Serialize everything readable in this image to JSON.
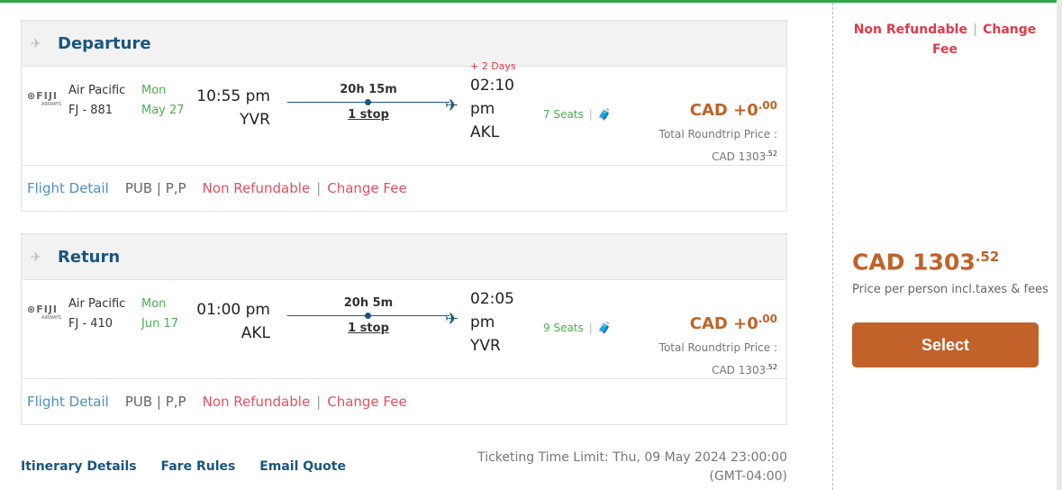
{
  "colors": {
    "accent": "#c0622a",
    "brand_blue": "#1a5580",
    "green": "#4caf50",
    "red": "#e03a4a",
    "top_bar": "#2ea84a"
  },
  "segments": [
    {
      "title": "Departure",
      "logo": "FIJI",
      "logo_sub": "AIRWAYS",
      "airline": "Air Pacific",
      "flight": "FJ - 881",
      "day": "Mon",
      "date": "May 27",
      "dep_time": "10:55 pm",
      "dep_code": "YVR",
      "duration": "20h 15m",
      "stops": "1 stop",
      "plus_days": "+ 2 Days",
      "arr_time_1": "02:10",
      "arr_time_2": "pm",
      "arr_code": "AKL",
      "seats": "7 Seats",
      "price": "CAD +0",
      "price_dec": ".00",
      "total_label": "Total Roundtrip Price :",
      "total": "CAD 1303",
      "total_dec": ".52",
      "flight_detail": "Flight Detail",
      "fare_class": "PUB | P,P",
      "non_refundable": "Non Refundable",
      "change_fee": "Change Fee"
    },
    {
      "title": "Return",
      "logo": "FIJI",
      "logo_sub": "AIRWAYS",
      "airline": "Air Pacific",
      "flight": "FJ - 410",
      "day": "Mon",
      "date": "Jun 17",
      "dep_time": "01:00 pm",
      "dep_code": "AKL",
      "duration": "20h 5m",
      "stops": "1 stop",
      "arr_time_1": "02:05",
      "arr_time_2": "pm",
      "arr_code": "YVR",
      "seats": "9 Seats",
      "price": "CAD +0",
      "price_dec": ".00",
      "total_label": "Total Roundtrip Price :",
      "total": "CAD 1303",
      "total_dec": ".52",
      "flight_detail": "Flight Detail",
      "fare_class": "PUB | P,P",
      "non_refundable": "Non Refundable",
      "change_fee": "Change Fee"
    }
  ],
  "links": {
    "itinerary": "Itinerary Details",
    "fare_rules": "Fare Rules",
    "email": "Email Quote"
  },
  "ticketing": "Ticketing Time Limit: Thu, 09 May 2024 23:00:00 (GMT-04:00)",
  "side": {
    "non_refundable": "Non Refundable",
    "change_fee": "Change Fee",
    "price": "CAD 1303",
    "price_dec": ".52",
    "price_note": "Price per person incl.taxes & fees",
    "select": "Select"
  }
}
